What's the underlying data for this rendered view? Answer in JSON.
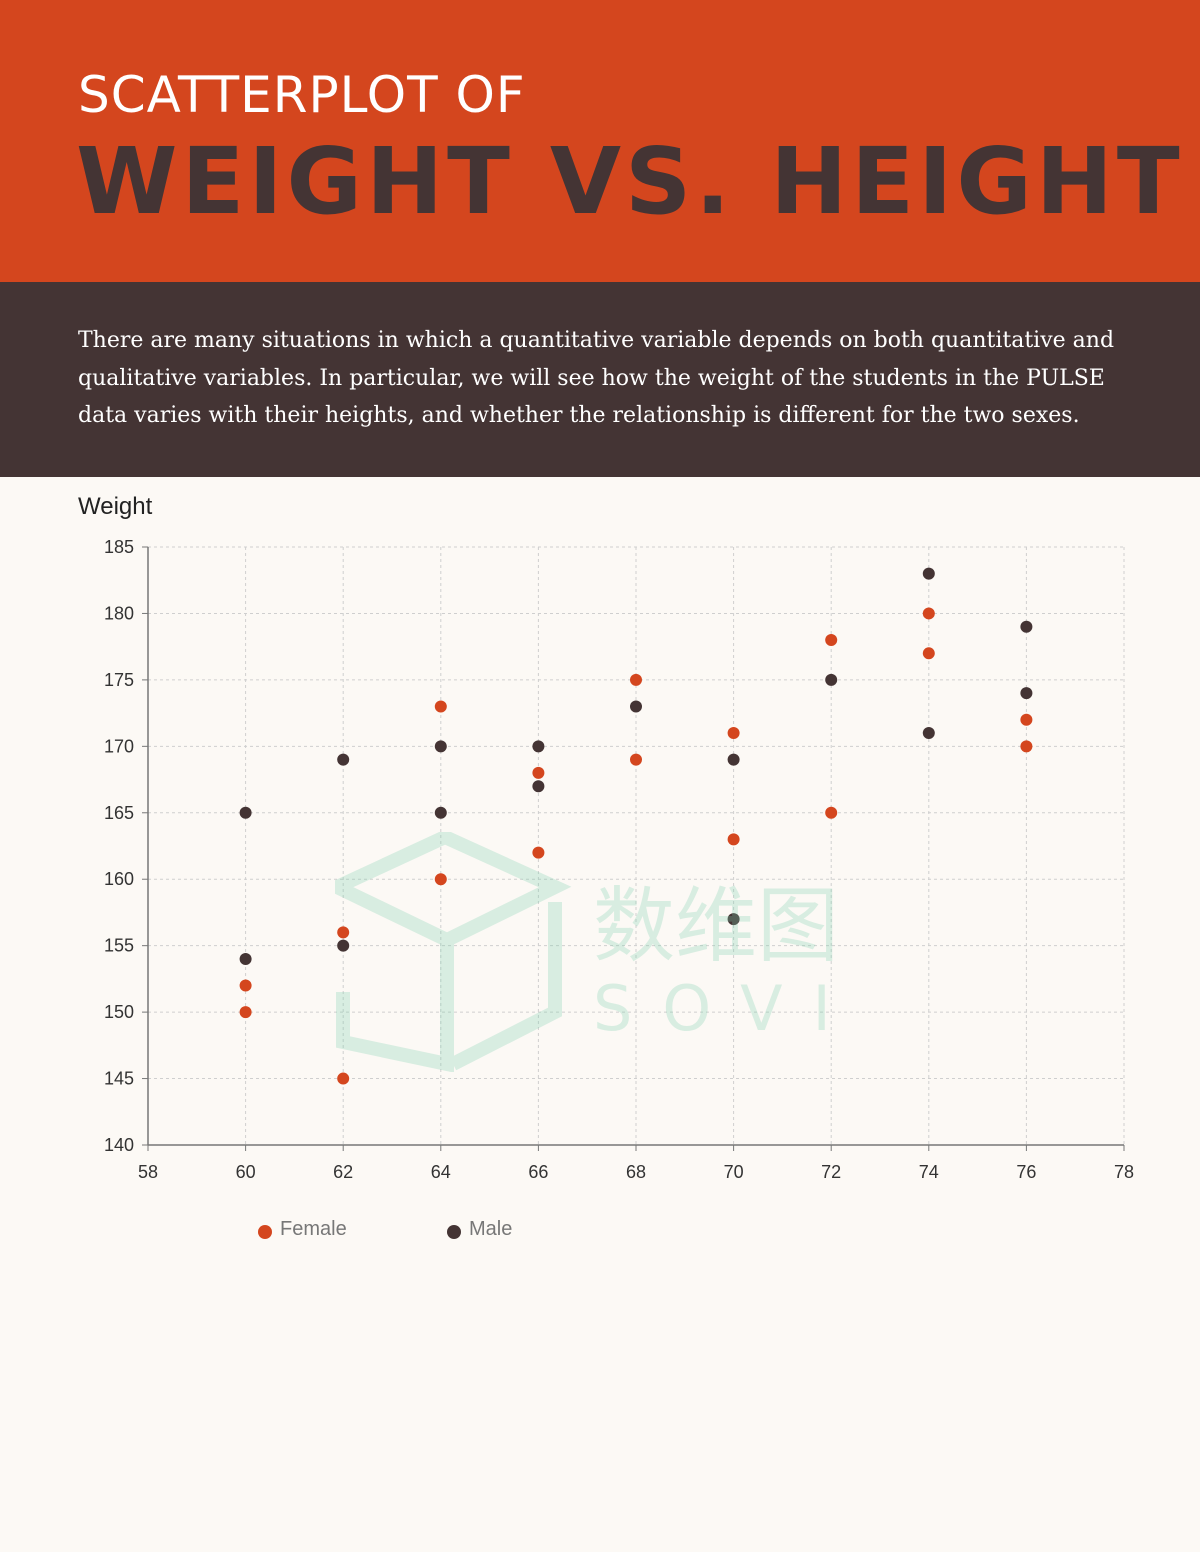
{
  "header": {
    "kicker": "SCATTERPLOT OF",
    "headline": "WEIGHT VS. HEIGHT"
  },
  "intro": {
    "text": "There are many situations in which a quantitative variable depends on both quantitative and qualitative variables. In particular, we will see how the weight of the students in the PULSE data varies with their heights, and whether the relationship is different for the two sexes."
  },
  "colors": {
    "female": "#d4461e",
    "male": "#443434",
    "watermark": "#7fcfae"
  },
  "watermark": {
    "cn": "数维图",
    "en": "SOVIT"
  },
  "chart_data": {
    "type": "scatter",
    "title": "",
    "xlabel": "",
    "ylabel": "Weight",
    "xlim": [
      58,
      78
    ],
    "ylim": [
      140,
      185
    ],
    "xticks": [
      58,
      60,
      62,
      64,
      66,
      68,
      70,
      72,
      74,
      76,
      78
    ],
    "yticks": [
      140,
      145,
      150,
      155,
      160,
      165,
      170,
      175,
      180,
      185
    ],
    "grid": true,
    "legend_position": "bottom-left",
    "series": [
      {
        "name": "Female",
        "color": "#d4461e",
        "points": [
          [
            60,
            152
          ],
          [
            60,
            150
          ],
          [
            62,
            156
          ],
          [
            62,
            145
          ],
          [
            64,
            173
          ],
          [
            64,
            160
          ],
          [
            66,
            168
          ],
          [
            66,
            162
          ],
          [
            68,
            175
          ],
          [
            68,
            169
          ],
          [
            70,
            171
          ],
          [
            70,
            163
          ],
          [
            72,
            178
          ],
          [
            72,
            165
          ],
          [
            74,
            180
          ],
          [
            74,
            177
          ],
          [
            76,
            172
          ],
          [
            76,
            170
          ]
        ]
      },
      {
        "name": "Male",
        "color": "#443434",
        "points": [
          [
            60,
            165
          ],
          [
            60,
            154
          ],
          [
            62,
            169
          ],
          [
            62,
            155
          ],
          [
            64,
            170
          ],
          [
            64,
            165
          ],
          [
            66,
            170
          ],
          [
            66,
            167
          ],
          [
            68,
            173
          ],
          [
            70,
            169
          ],
          [
            70,
            157
          ],
          [
            72,
            175
          ],
          [
            74,
            183
          ],
          [
            74,
            171
          ],
          [
            76,
            179
          ],
          [
            76,
            174
          ]
        ]
      }
    ]
  }
}
